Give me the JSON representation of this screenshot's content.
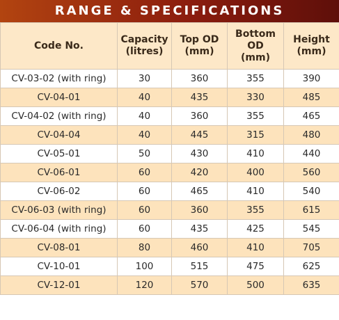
{
  "title": "RANGE & SPECIFICATIONS",
  "headers": [
    "Code No.",
    "Capacity\n(litres)",
    "Top OD\n(mm)",
    "Bottom\nOD\n(mm)",
    "Height\n(mm)"
  ],
  "rows": [
    [
      "CV-03-02 (with ring)",
      "30",
      "360",
      "355",
      "390"
    ],
    [
      "CV-04-01",
      "40",
      "435",
      "330",
      "485"
    ],
    [
      "CV-04-02 (with ring)",
      "40",
      "360",
      "355",
      "465"
    ],
    [
      "CV-04-04",
      "40",
      "445",
      "315",
      "480"
    ],
    [
      "CV-05-01",
      "50",
      "430",
      "410",
      "440"
    ],
    [
      "CV-06-01",
      "60",
      "420",
      "400",
      "560"
    ],
    [
      "CV-06-02",
      "60",
      "465",
      "410",
      "540"
    ],
    [
      "CV-06-03 (with ring)",
      "60",
      "360",
      "355",
      "615"
    ],
    [
      "CV-06-04 (with ring)",
      "60",
      "435",
      "425",
      "545"
    ],
    [
      "CV-08-01",
      "80",
      "460",
      "410",
      "705"
    ],
    [
      "CV-10-01",
      "100",
      "515",
      "475",
      "625"
    ],
    [
      "CV-12-01",
      "120",
      "570",
      "500",
      "635"
    ]
  ],
  "colors": {
    "banner": "#8c1d0e",
    "header_bg": "#fde8c8",
    "stripe_bg": "#fde3bc",
    "border": "#d6c7b4"
  }
}
